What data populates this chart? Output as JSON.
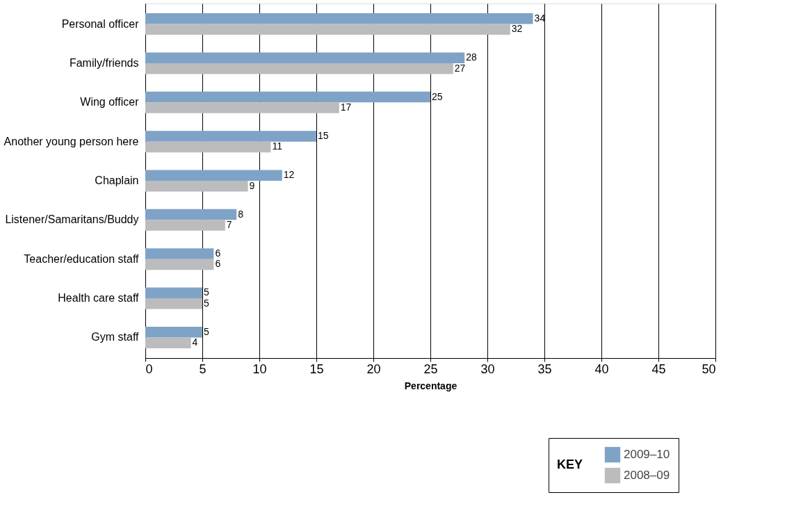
{
  "chart_data": {
    "type": "bar",
    "orientation": "horizontal",
    "xlabel": "Percentage",
    "legend_title": "KEY",
    "legend": "bottom right",
    "grid": "x",
    "data_labels": true,
    "categories": [
      "Personal officer",
      "Family/friends",
      "Wing officer",
      "Another young person here",
      "Chaplain",
      "Listener/Samaritans/Buddy",
      "Teacher/education staff",
      "Health care staff",
      "Gym staff"
    ],
    "series": [
      {
        "name": "2009–10",
        "color": "#7fa3c6",
        "values": [
          34,
          28,
          25,
          15,
          12,
          8,
          6,
          5,
          5
        ]
      },
      {
        "name": "2008–09",
        "color": "#bcbcbe",
        "values": [
          32,
          27,
          17,
          11,
          9,
          7,
          6,
          5,
          4
        ]
      }
    ],
    "xlim": [
      0,
      50
    ],
    "xticks": [
      0,
      5,
      10,
      15,
      20,
      25,
      30,
      35,
      40,
      45,
      50
    ]
  }
}
